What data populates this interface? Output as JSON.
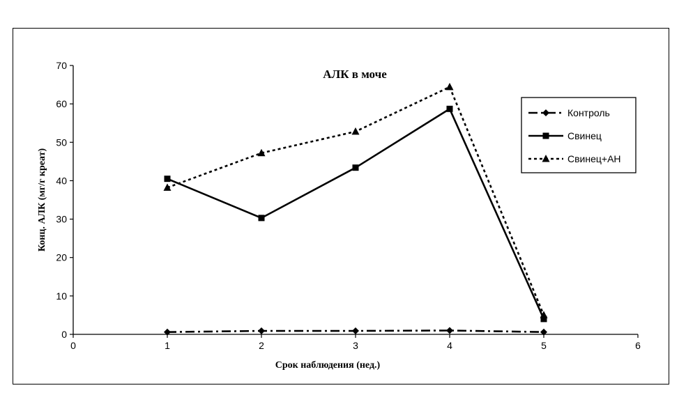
{
  "chart_data": {
    "type": "line",
    "title": "АЛК в моче",
    "xlabel": "Срок наблюдения   (нед.)",
    "ylabel": "Конц. АЛК (мг/г креат)",
    "xlim": [
      0,
      6
    ],
    "ylim": [
      0,
      70
    ],
    "x_ticks": [
      0,
      1,
      2,
      3,
      4,
      5,
      6
    ],
    "y_ticks": [
      0,
      10,
      20,
      30,
      40,
      50,
      60,
      70
    ],
    "grid": false,
    "legend_position": "right",
    "series": [
      {
        "name": "Контроль",
        "x": [
          1,
          2,
          3,
          4,
          5
        ],
        "values": [
          0.6,
          0.9,
          0.9,
          1.0,
          0.6
        ],
        "dash": "dash-dot",
        "marker": "diamond",
        "color": "#000000"
      },
      {
        "name": "Свинец",
        "x": [
          1,
          2,
          3,
          4,
          5
        ],
        "values": [
          40.5,
          30.3,
          43.4,
          58.7,
          4.0
        ],
        "dash": "solid",
        "marker": "square",
        "color": "#000000"
      },
      {
        "name": "Свинец+АН",
        "x": [
          1,
          2,
          3,
          4,
          5
        ],
        "values": [
          38.2,
          47.2,
          52.8,
          64.4,
          5.0
        ],
        "dash": "dotted",
        "marker": "triangle",
        "color": "#000000"
      }
    ]
  }
}
